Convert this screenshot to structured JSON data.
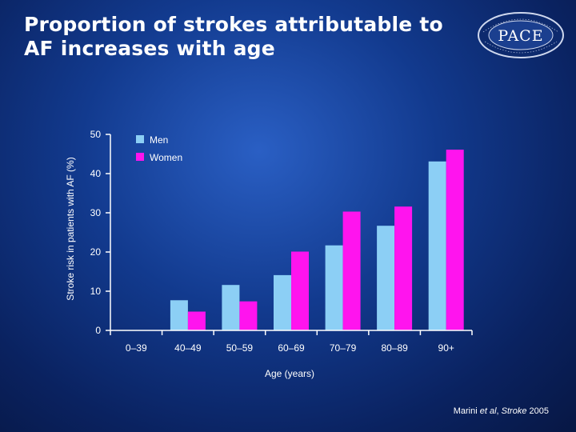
{
  "slide": {
    "title_line1": "Proportion of strokes attributable to",
    "title_line2": "AF increases with age",
    "logo_text": "PACE",
    "citation_authors": "Marini",
    "citation_etal": "et al",
    "citation_journal": "Stroke",
    "citation_year": "2005"
  },
  "colors": {
    "men": "#8ccff5",
    "women": "#ff14ee",
    "axis": "#ffffff",
    "text": "#ffffff"
  },
  "chart_data": {
    "type": "bar",
    "title": "",
    "xlabel": "Age (years)",
    "ylabel": "Stroke risk in patients with AF (%)",
    "categories": [
      "0–39",
      "40–49",
      "50–59",
      "60–69",
      "70–79",
      "80–89",
      "90+"
    ],
    "series": [
      {
        "name": "Men",
        "values": [
          0,
          7.7,
          11.6,
          14.1,
          21.7,
          26.7,
          43.1
        ]
      },
      {
        "name": "Women",
        "values": [
          0,
          4.8,
          7.4,
          20.1,
          30.3,
          31.6,
          46.1
        ]
      }
    ],
    "ylim": [
      0,
      50
    ],
    "yticks": [
      "0",
      "10",
      "20",
      "30",
      "40",
      "50"
    ],
    "legend_position": "top-left",
    "grid": false
  }
}
